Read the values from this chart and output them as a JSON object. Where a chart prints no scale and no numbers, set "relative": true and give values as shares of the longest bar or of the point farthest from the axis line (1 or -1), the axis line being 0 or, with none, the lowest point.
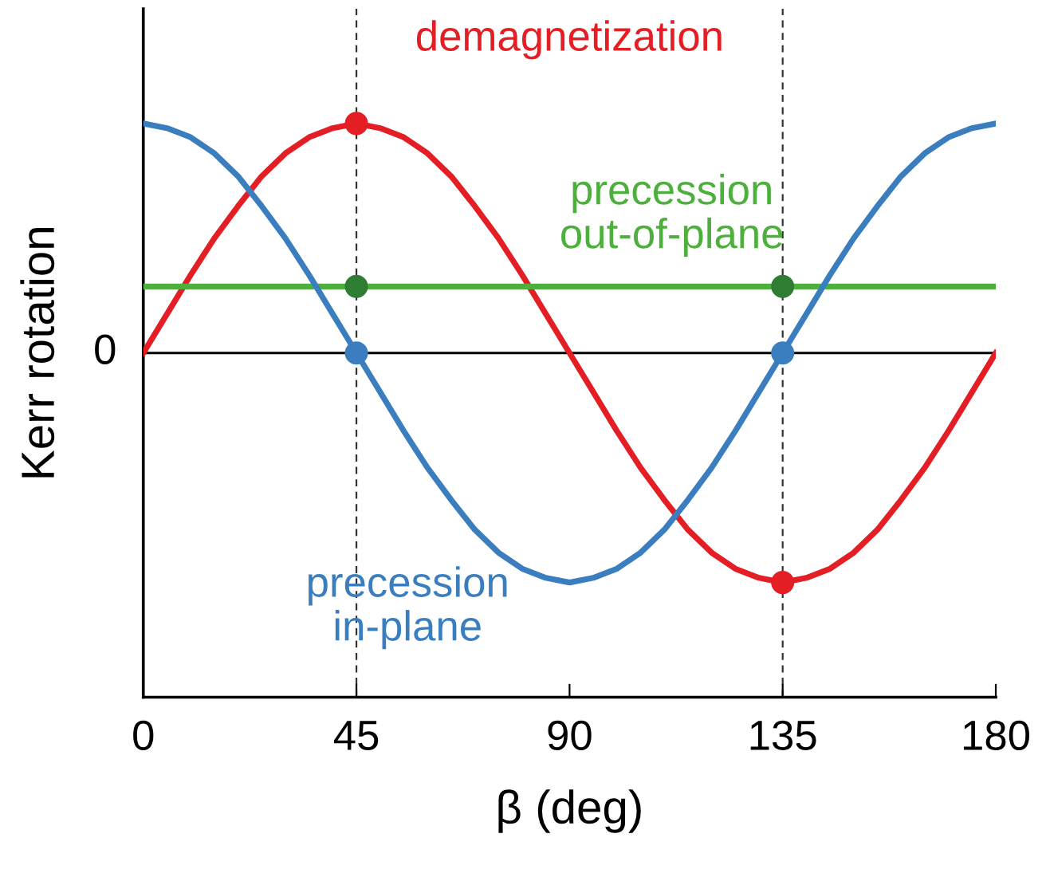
{
  "chart_data": {
    "type": "line",
    "xlabel": "β (deg)",
    "ylabel": "Kerr rotation",
    "relative": true,
    "xlim": [
      0,
      180
    ],
    "xticks": [
      0,
      45,
      90,
      135,
      180
    ],
    "grid": false,
    "legend": false,
    "ref_lines": [
      {
        "axis": "y",
        "value": 0,
        "label": "0",
        "color": "#000000",
        "line_style": "solid"
      },
      {
        "axis": "x",
        "value": 45,
        "color": "#333333",
        "line_style": "dashed"
      },
      {
        "axis": "x",
        "value": 135,
        "color": "#333333",
        "line_style": "dashed"
      }
    ],
    "series": [
      {
        "name": "demagnetization",
        "color": "#e31e24",
        "x": [
          0,
          5,
          10,
          15,
          20,
          25,
          30,
          35,
          40,
          45,
          50,
          55,
          60,
          65,
          70,
          75,
          80,
          85,
          90,
          95,
          100,
          105,
          110,
          115,
          120,
          125,
          130,
          135,
          140,
          145,
          150,
          155,
          160,
          165,
          170,
          175,
          180
        ],
        "values": [
          0,
          0.17,
          0.34,
          0.5,
          0.64,
          0.77,
          0.87,
          0.94,
          0.98,
          1,
          0.98,
          0.94,
          0.87,
          0.77,
          0.64,
          0.5,
          0.34,
          0.17,
          0,
          -0.17,
          -0.34,
          -0.5,
          -0.64,
          -0.77,
          -0.87,
          -0.94,
          -0.98,
          -1,
          -0.98,
          -0.94,
          -0.87,
          -0.77,
          -0.64,
          -0.5,
          -0.34,
          -0.17,
          0
        ]
      },
      {
        "name": "precession\nout-of-plane",
        "color": "#4daf3c",
        "x": [
          0,
          180
        ],
        "values": [
          0.29,
          0.29
        ]
      },
      {
        "name": "precession\nin-plane",
        "color": "#3a7ebf",
        "x": [
          0,
          5,
          10,
          15,
          20,
          25,
          30,
          35,
          40,
          45,
          50,
          55,
          60,
          65,
          70,
          75,
          80,
          85,
          90,
          95,
          100,
          105,
          110,
          115,
          120,
          125,
          130,
          135,
          140,
          145,
          150,
          155,
          160,
          165,
          170,
          175,
          180
        ],
        "values": [
          1,
          0.98,
          0.94,
          0.87,
          0.77,
          0.64,
          0.5,
          0.34,
          0.17,
          0,
          -0.17,
          -0.34,
          -0.5,
          -0.64,
          -0.77,
          -0.87,
          -0.94,
          -0.98,
          -1,
          -0.98,
          -0.94,
          -0.87,
          -0.77,
          -0.64,
          -0.5,
          -0.34,
          -0.17,
          0,
          0.17,
          0.34,
          0.5,
          0.64,
          0.77,
          0.87,
          0.94,
          0.98,
          1
        ]
      },
      {
        "type": "scatter",
        "color": "#e31e24",
        "x": [
          45,
          135
        ],
        "values": [
          1,
          -1
        ]
      },
      {
        "type": "scatter",
        "color": "#2e7d32",
        "x": [
          45,
          135
        ],
        "values": [
          0.29,
          0.29
        ]
      },
      {
        "type": "scatter",
        "color": "#3a7ebf",
        "x": [
          45,
          135
        ],
        "values": [
          0,
          0
        ]
      }
    ]
  }
}
